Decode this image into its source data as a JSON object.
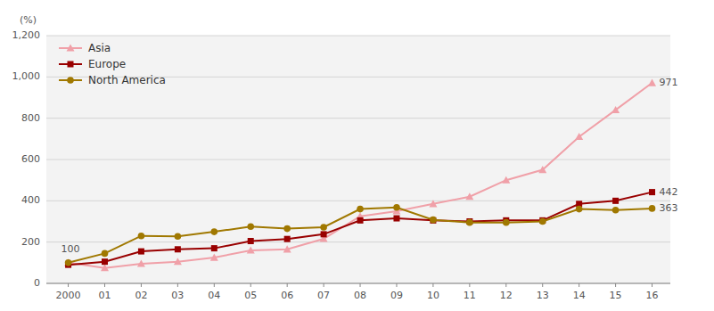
{
  "chart_data": {
    "type": "line",
    "y_label": "(%)",
    "x": [
      2000,
      2001,
      2002,
      2003,
      2004,
      2005,
      2006,
      2007,
      2008,
      2009,
      2010,
      2011,
      2012,
      2013,
      2014,
      2015,
      2016
    ],
    "series": [
      {
        "name": "Asia",
        "color": "#f0a0a8",
        "marker": "triangle",
        "values": [
          100,
          75,
          95,
          105,
          125,
          160,
          165,
          216,
          325,
          350,
          385,
          420,
          500,
          550,
          710,
          840,
          971
        ]
      },
      {
        "name": "Europe",
        "color": "#990000",
        "marker": "square",
        "values": [
          90,
          105,
          155,
          165,
          170,
          205,
          215,
          238,
          305,
          315,
          305,
          300,
          305,
          305,
          385,
          400,
          442
        ]
      },
      {
        "name": "North America",
        "color": "#a07800",
        "marker": "circle",
        "values": [
          100,
          145,
          230,
          228,
          250,
          275,
          265,
          272,
          360,
          368,
          308,
          295,
          295,
          300,
          360,
          355,
          363
        ]
      }
    ],
    "xlim": [
      1999.4,
      2016.5
    ],
    "xticks": [
      2000,
      {
        "value": 2001,
        "label": "01"
      },
      {
        "value": 2002,
        "label": "02"
      },
      {
        "value": 2003,
        "label": "03"
      },
      {
        "value": 2004,
        "label": "04"
      },
      {
        "value": 2005,
        "label": "05"
      },
      {
        "value": 2006,
        "label": "06"
      },
      {
        "value": 2007,
        "label": "07"
      },
      {
        "value": 2008,
        "label": "08"
      },
      {
        "value": 2009,
        "label": "09"
      },
      {
        "value": 2010,
        "label": "10"
      },
      {
        "value": 2011,
        "label": "11"
      },
      {
        "value": 2012,
        "label": "12"
      },
      {
        "value": 2013,
        "label": "13"
      },
      {
        "value": 2014,
        "label": "14"
      },
      {
        "value": 2015,
        "label": "15"
      },
      {
        "value": 2016,
        "label": "16"
      }
    ],
    "ylim": [
      0,
      1200
    ],
    "yticks": [
      0,
      200,
      400,
      600,
      800,
      {
        "value": 1000,
        "label": "1,000"
      },
      {
        "value": 1200,
        "label": "1,200"
      }
    ],
    "grid": true,
    "legend": "upper left",
    "annotations": [
      {
        "text": "100",
        "x": 2000,
        "y": 100
      },
      {
        "text": "971",
        "x": 2016,
        "y": 971
      },
      {
        "text": "442",
        "x": 2016,
        "y": 442
      },
      {
        "text": "363",
        "x": 2016,
        "y": 363
      }
    ]
  }
}
